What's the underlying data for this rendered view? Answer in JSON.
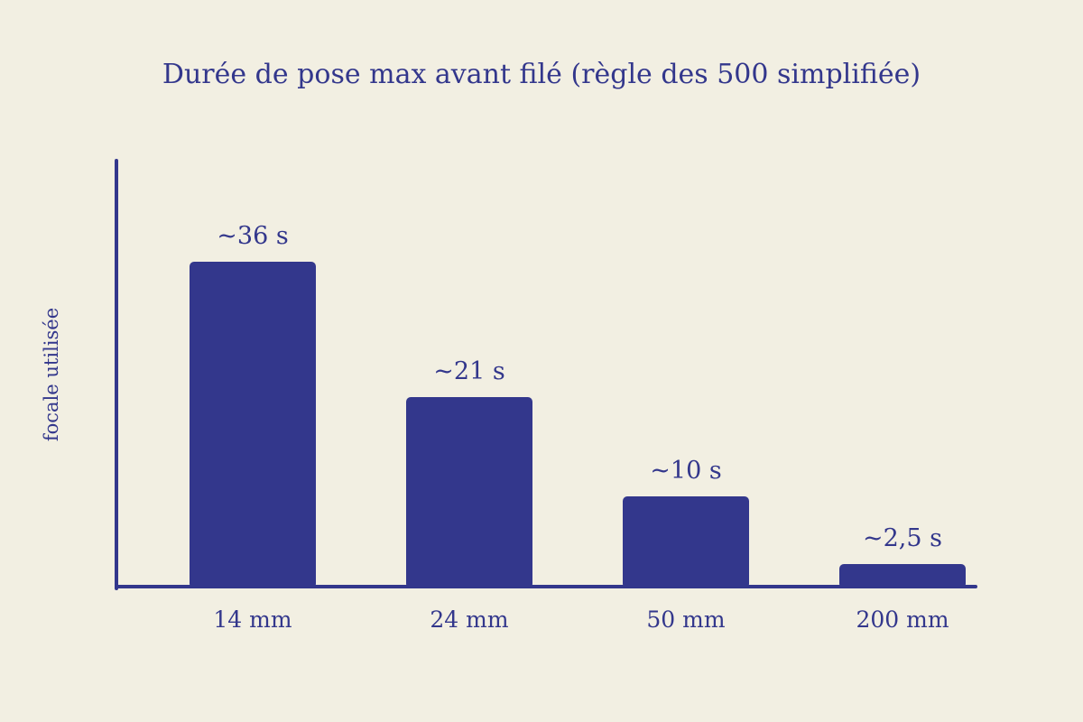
{
  "colors": {
    "background": "#f2efe2",
    "accent": "#33378c"
  },
  "chart_data": {
    "type": "bar",
    "title": "Durée de pose max avant filé (règle des 500 simplifiée)",
    "xlabel": "",
    "ylabel": "focale utilisée",
    "categories": [
      "14 mm",
      "24 mm",
      "50 mm",
      "200 mm"
    ],
    "values": [
      36,
      21,
      10,
      2.5
    ],
    "value_labels": [
      "~36 s",
      "~21 s",
      "~10 s",
      "~2,5 s"
    ],
    "ylim": [
      0,
      40
    ],
    "grid": false,
    "legend": "none"
  }
}
